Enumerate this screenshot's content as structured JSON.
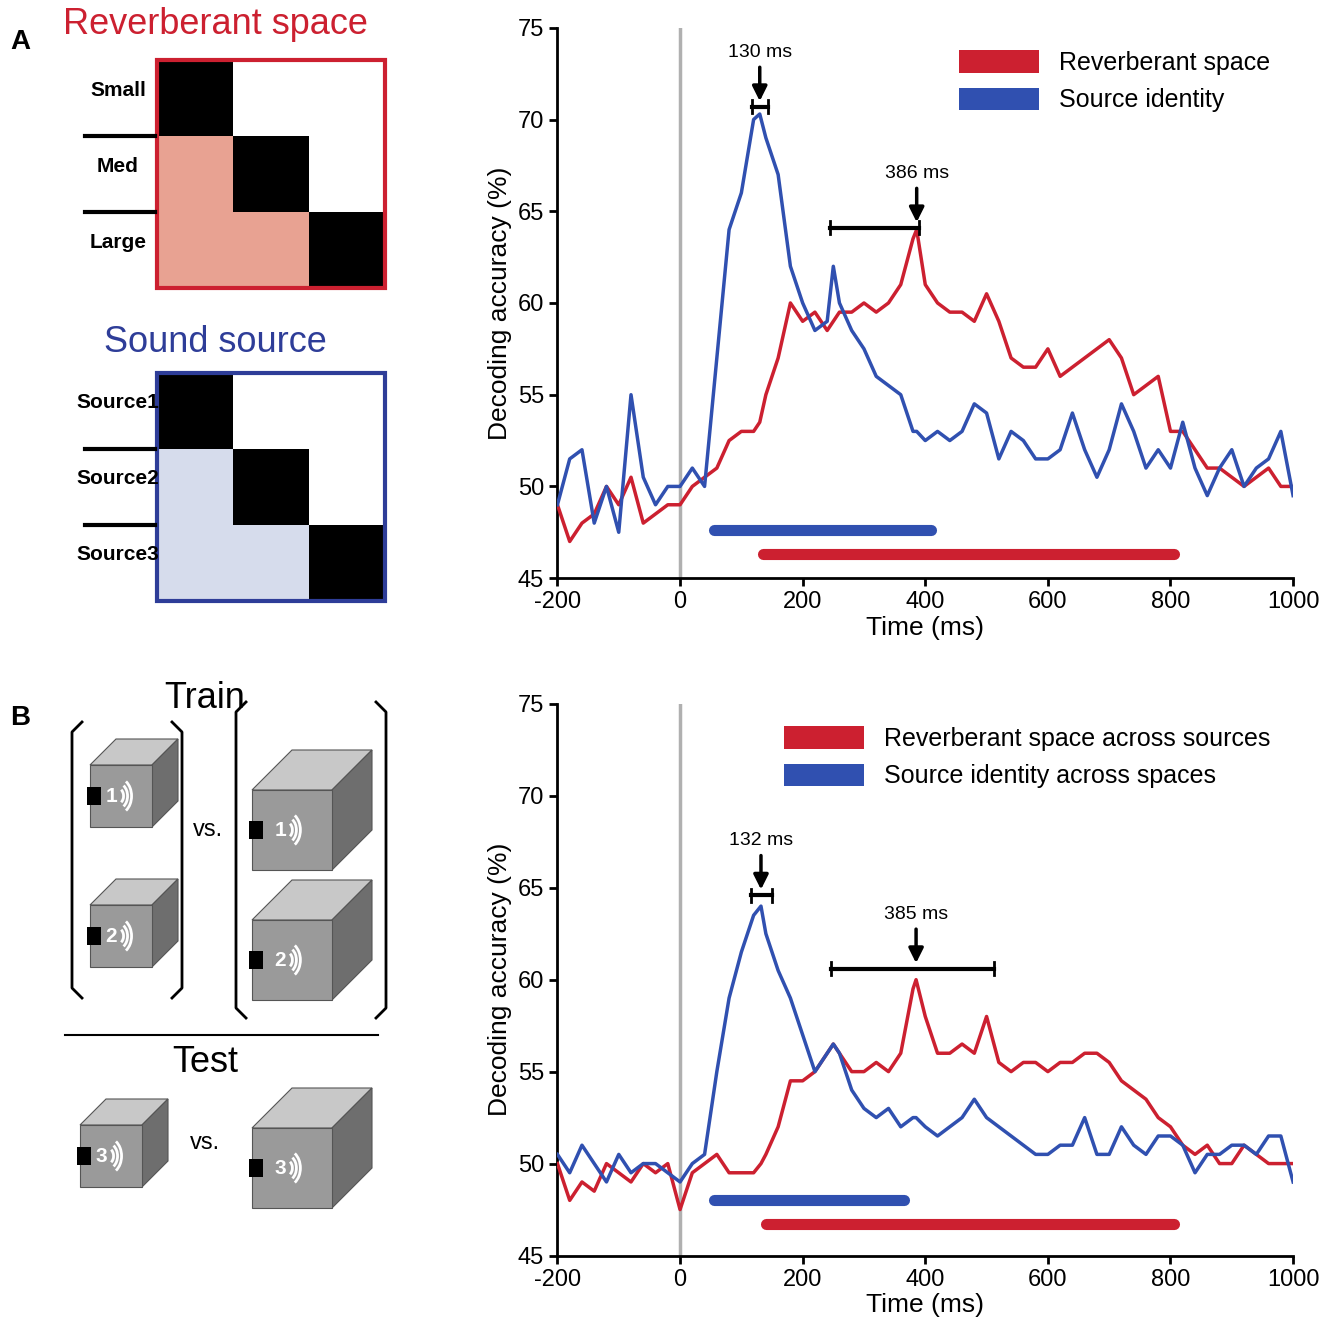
{
  "chart_data": [
    {
      "type": "line",
      "x_label": "Time (ms)",
      "y_label": "Decoding accuracy (%)",
      "x": [
        -200,
        -180,
        -160,
        -140,
        -120,
        -100,
        -80,
        -60,
        -40,
        -20,
        0,
        20,
        40,
        60,
        80,
        100,
        120,
        130,
        140,
        160,
        180,
        200,
        220,
        240,
        250,
        260,
        280,
        300,
        320,
        340,
        360,
        380,
        386,
        400,
        420,
        440,
        460,
        480,
        500,
        520,
        540,
        560,
        580,
        600,
        620,
        640,
        660,
        680,
        700,
        720,
        740,
        760,
        780,
        800,
        820,
        840,
        860,
        880,
        900,
        920,
        940,
        960,
        980,
        1000
      ],
      "series": [
        {
          "name": "Reverberant space",
          "color": "#cc2030",
          "values": [
            49,
            47,
            48,
            48.5,
            50,
            49,
            50.5,
            48,
            48.5,
            49,
            49,
            50,
            50.5,
            51,
            52.5,
            53,
            53,
            53.5,
            55,
            57,
            60,
            59,
            59.5,
            58.5,
            59,
            59.5,
            59.5,
            60,
            59.5,
            60,
            61,
            63.5,
            64,
            61,
            60,
            59.5,
            59.5,
            59,
            60.5,
            59,
            57,
            56.5,
            56.5,
            57.5,
            56,
            56.5,
            57,
            57.5,
            58,
            57,
            55,
            55.5,
            56,
            53,
            53,
            52,
            51,
            51,
            50.5,
            50,
            50.5,
            51,
            50,
            50
          ]
        },
        {
          "name": "Source identity",
          "color": "#3050b0",
          "values": [
            49,
            51.5,
            52,
            48,
            50,
            47.5,
            55,
            50.5,
            49,
            50,
            50,
            51,
            50,
            57,
            64,
            66,
            70,
            70.3,
            69,
            67,
            62,
            60,
            58.5,
            59,
            62,
            60,
            58.5,
            57.5,
            56,
            55.5,
            55,
            53,
            53,
            52.5,
            53,
            52.5,
            53,
            54.5,
            54,
            51.5,
            53,
            52.5,
            51.5,
            51.5,
            52,
            54,
            52,
            50.5,
            52,
            54.5,
            53,
            51,
            52,
            51,
            53.5,
            51,
            49.5,
            51,
            52,
            50,
            51,
            51.5,
            53,
            49.5
          ]
        }
      ],
      "xlim": [
        -200,
        1000
      ],
      "xticks": [
        -200,
        0,
        200,
        400,
        600,
        800,
        1000
      ],
      "ylim": [
        45,
        75
      ],
      "yticks": [
        45,
        50,
        55,
        60,
        65,
        70,
        75
      ],
      "legend": "upper right",
      "vline": 0,
      "annotations": [
        {
          "text": "130 ms",
          "x": 130,
          "y": 70.7,
          "range": [
            118,
            143
          ]
        },
        {
          "text": "386 ms",
          "x": 386,
          "y": 64.1,
          "range": [
            245,
            390
          ]
        }
      ],
      "significance": [
        {
          "series": "Source identity",
          "start": 55,
          "end": 410,
          "y": 47.6
        },
        {
          "series": "Reverberant space",
          "start": 135,
          "end": 805,
          "y": 46.3
        }
      ]
    },
    {
      "type": "line",
      "x_label": "Time (ms)",
      "y_label": "Decoding accuracy (%)",
      "x": [
        -200,
        -180,
        -160,
        -140,
        -120,
        -100,
        -80,
        -60,
        -40,
        -20,
        0,
        20,
        40,
        60,
        80,
        100,
        120,
        132,
        140,
        160,
        180,
        200,
        220,
        240,
        250,
        260,
        280,
        300,
        320,
        340,
        360,
        380,
        385,
        400,
        420,
        440,
        460,
        480,
        500,
        520,
        540,
        560,
        580,
        600,
        620,
        640,
        660,
        680,
        700,
        720,
        740,
        760,
        780,
        800,
        820,
        840,
        860,
        880,
        900,
        920,
        940,
        960,
        980,
        1000
      ],
      "series": [
        {
          "name": "Reverberant space across sources",
          "color": "#cc2030",
          "values": [
            50,
            48,
            49,
            48.5,
            50,
            49.5,
            49,
            50,
            49.5,
            50,
            47.5,
            49.5,
            50,
            50.5,
            49.5,
            49.5,
            49.5,
            50,
            50.5,
            52,
            54.5,
            54.5,
            55,
            56,
            56.5,
            56,
            55,
            55,
            55.5,
            55,
            56,
            59.5,
            60,
            58,
            56,
            56,
            56.5,
            56,
            58,
            55.5,
            55,
            55.5,
            55.5,
            55,
            55.5,
            55.5,
            56,
            56,
            55.5,
            54.5,
            54,
            53.5,
            52.5,
            52,
            51,
            50.5,
            51,
            50,
            50,
            51,
            50.5,
            50,
            50,
            50
          ]
        },
        {
          "name": "Source identity across spaces",
          "color": "#3050b0",
          "values": [
            50.5,
            49.5,
            51,
            50,
            49,
            50.5,
            49.5,
            50,
            50,
            49.5,
            49,
            50,
            50.5,
            55,
            59,
            61.5,
            63.5,
            64,
            62.5,
            60.5,
            59,
            57,
            55,
            56,
            56.5,
            56,
            54,
            53,
            52.5,
            53,
            52,
            52.5,
            52.5,
            52,
            51.5,
            52,
            52.5,
            53.5,
            52.5,
            52,
            51.5,
            51,
            50.5,
            50.5,
            51,
            51,
            52.5,
            50.5,
            50.5,
            52,
            51,
            50.5,
            51.5,
            51.5,
            51,
            49.5,
            50.5,
            50.5,
            51,
            51,
            50.5,
            51.5,
            51.5,
            49
          ]
        }
      ],
      "xlim": [
        -200,
        1000
      ],
      "xticks": [
        -200,
        0,
        200,
        400,
        600,
        800,
        1000
      ],
      "ylim": [
        45,
        75
      ],
      "yticks": [
        45,
        50,
        55,
        60,
        65,
        70,
        75
      ],
      "legend": "upper right",
      "vline": 0,
      "annotations": [
        {
          "text": "132 ms",
          "x": 132,
          "y": 64.6,
          "range": [
            116,
            150
          ]
        },
        {
          "text": "385 ms",
          "x": 385,
          "y": 60.6,
          "range": [
            247,
            512
          ]
        }
      ],
      "significance": [
        {
          "series": "Source identity across spaces",
          "start": 55,
          "end": 365,
          "y": 48.0
        },
        {
          "series": "Reverberant space across sources",
          "start": 140,
          "end": 805,
          "y": 46.7
        }
      ]
    }
  ],
  "diagrams": {
    "A": {
      "panel_label": "A",
      "matrices": [
        {
          "title": "Reverberant space",
          "color": "#cc2030",
          "fill": "#e8a292",
          "labels": [
            "Small",
            "Med",
            "Large"
          ]
        },
        {
          "title": "Sound source",
          "color": "#2e3d98",
          "fill": "#d6dcec",
          "labels": [
            "Source1",
            "Source2",
            "Source3"
          ]
        }
      ]
    },
    "B": {
      "panel_label": "B",
      "train_label": "Train",
      "test_label": "Test",
      "versus": "vs.",
      "train_sources": [
        "1",
        "2"
      ],
      "test_source": "3"
    }
  }
}
